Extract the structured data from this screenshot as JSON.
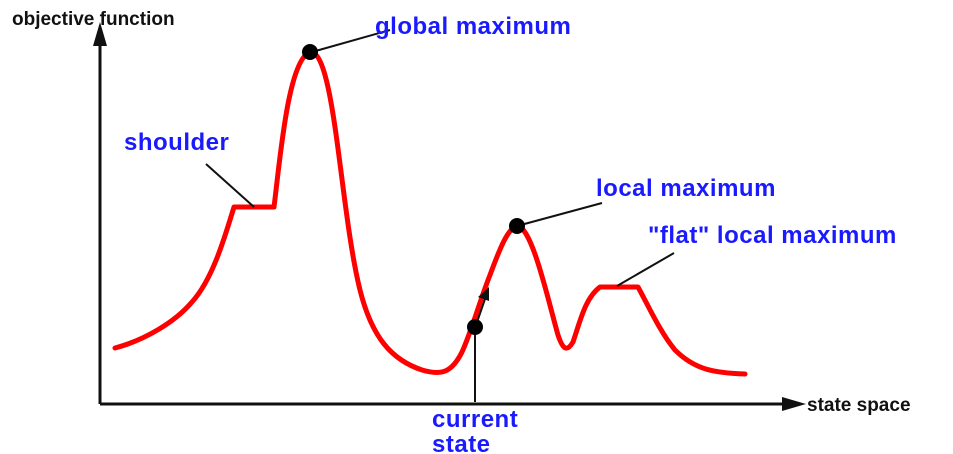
{
  "diagram": {
    "y_axis_label": "objective function",
    "x_axis_label": "state space",
    "annotations": {
      "global_maximum": "global maximum",
      "shoulder": "shoulder",
      "local_maximum": "local maximum",
      "flat_local_maximum": "\"flat\" local maximum",
      "current_state_line1": "current",
      "current_state_line2": "state"
    }
  },
  "colors": {
    "curve": "#ff0000",
    "annotation_text": "#1a1aff",
    "axis": "#111111",
    "point": "#000000"
  }
}
